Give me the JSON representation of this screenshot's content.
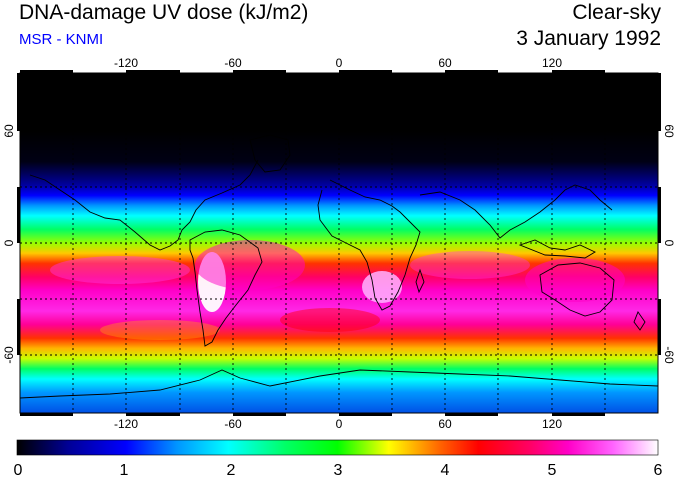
{
  "header": {
    "title": "DNA-damage UV dose (kJ/m2)",
    "subtitle": "MSR - KNMI",
    "mode": "Clear-sky",
    "date": "3 January 1992"
  },
  "colors": {
    "subtitle": "#0000ff",
    "scale": [
      "#000000",
      "#0000c8",
      "#0000ff",
      "#00b4ff",
      "#00ffff",
      "#00ff96",
      "#00ff00",
      "#96ff00",
      "#ffff00",
      "#ffb400",
      "#ff6400",
      "#ff0000",
      "#ff0064",
      "#ff00b4",
      "#ff00ff",
      "#ff64ff",
      "#ffc8ff",
      "#ffffff"
    ]
  },
  "map": {
    "lon_ticks": [
      -120,
      -60,
      0,
      60,
      120
    ],
    "lat_ticks": [
      60,
      0,
      -60
    ],
    "lon_tick_labels": [
      "-120",
      "-60",
      "0",
      "60",
      "120"
    ],
    "lat_tick_labels": [
      "60",
      "0",
      "-60"
    ]
  },
  "colorbar": {
    "min": 0,
    "max": 6,
    "labels": [
      "0",
      "1",
      "2",
      "3",
      "4",
      "5",
      "6"
    ]
  }
}
